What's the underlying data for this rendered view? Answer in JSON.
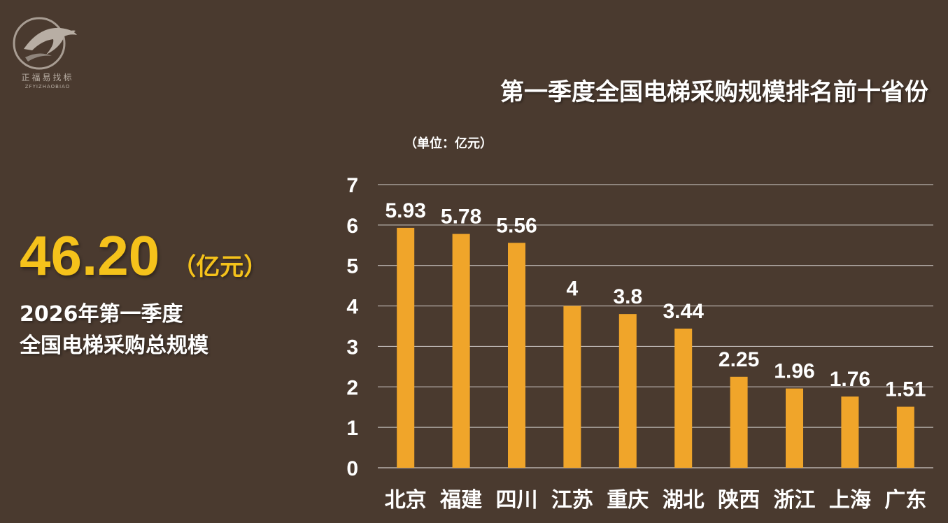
{
  "logo": {
    "text": "正福易找标",
    "subtext": "ZFYIZHAOBIAO"
  },
  "summary": {
    "total_value": "46.20",
    "total_unit": "（亿元）",
    "line1": "2026年第一季度",
    "line2": "全国电梯采购总规模"
  },
  "colors": {
    "background": "#4a3a2f",
    "bar": "#f0a52a",
    "accent": "#f5c21b",
    "text": "#ffffff"
  },
  "chart_data": {
    "type": "bar",
    "title": "第一季度全国电梯采购规模排名前十省份",
    "unit_label": "（单位：亿元）",
    "categories": [
      "北京",
      "福建",
      "四川",
      "江苏",
      "重庆",
      "湖北",
      "陕西",
      "浙江",
      "上海",
      "广东"
    ],
    "values": [
      5.93,
      5.78,
      5.56,
      4,
      3.8,
      3.44,
      2.25,
      1.96,
      1.76,
      1.51
    ],
    "value_labels": [
      "5.93",
      "5.78",
      "5.56",
      "4",
      "3.8",
      "3.44",
      "2.25",
      "1.96",
      "1.76",
      "1.51"
    ],
    "y_ticks": [
      "0",
      "1",
      "2",
      "3",
      "4",
      "5",
      "6",
      "7"
    ],
    "ylim": [
      0,
      7
    ],
    "grid": true,
    "legend": "none"
  }
}
